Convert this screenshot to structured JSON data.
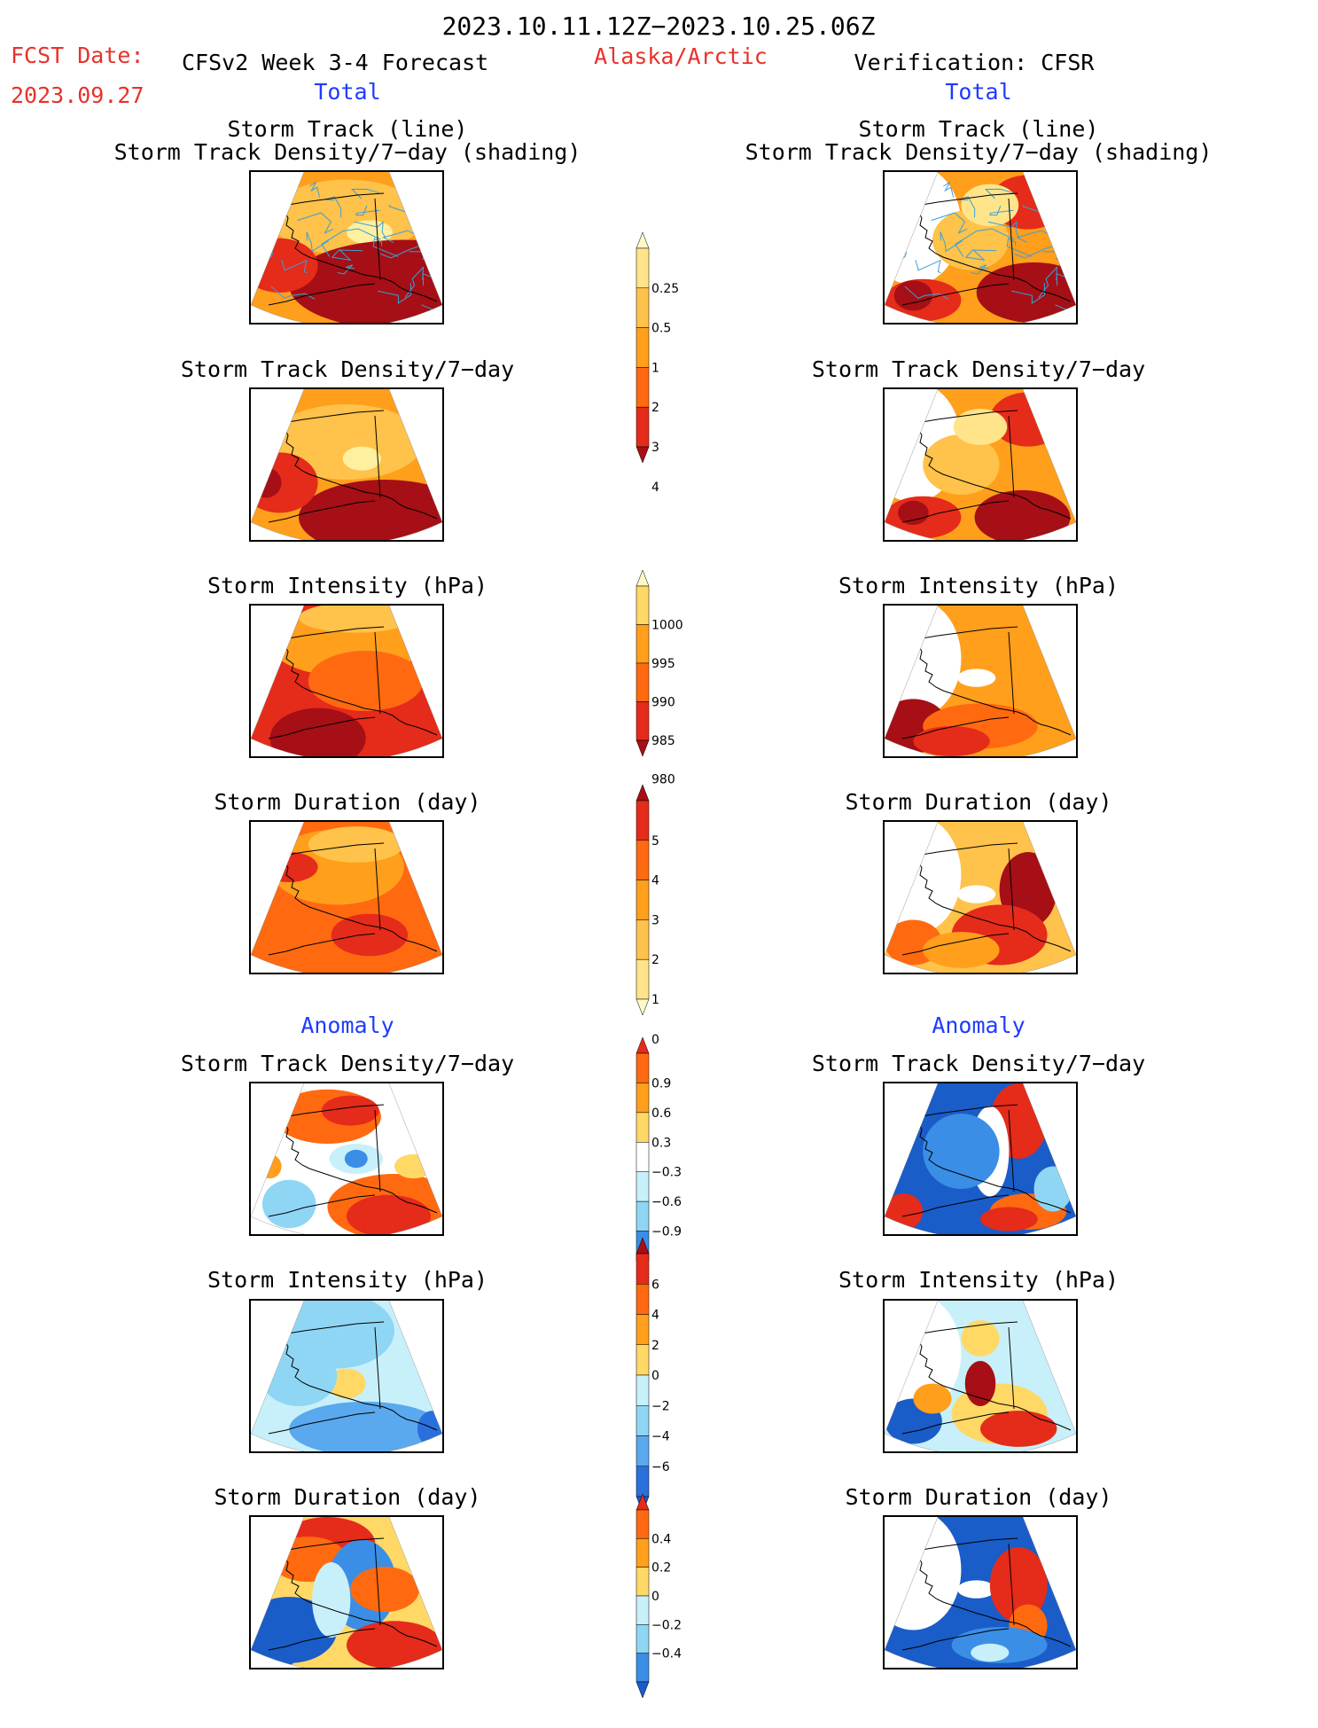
{
  "header": {
    "date_range": "2023.10.11.12Z−2023.10.25.06Z",
    "fcst_label": "FCST Date:",
    "fcst_date": "2023.09.27",
    "model": "CFSv2 Week 3-4 Forecast",
    "region": "Alaska/Arctic",
    "verification": "Verification: CFSR"
  },
  "sections": {
    "total": "Total",
    "anomaly": "Anomaly"
  },
  "panel_titles": {
    "track_line": "Storm Track (line)",
    "track_shading": "Storm Track Density/7−day (shading)",
    "density": "Storm Track Density/7−day",
    "intensity": "Storm Intensity (hPa)",
    "duration": "Storm Duration (day)"
  },
  "colors": {
    "text_red": "#e8322a",
    "text_blue": "#1f3bff",
    "track_line": "#3aa0d8",
    "map_border": "#000000"
  },
  "chart_data": [
    {
      "type": "heatmap",
      "name": "total_density_colorbar",
      "ticks": [
        "0.25",
        "0.5",
        "1",
        "2",
        "3",
        "4"
      ],
      "colors": [
        "#fff9c8",
        "#ffe48a",
        "#ffc24a",
        "#ff9f1c",
        "#ff6a10",
        "#e52b1a",
        "#a50f15"
      ]
    },
    {
      "type": "heatmap",
      "name": "total_intensity_colorbar",
      "ticks": [
        "1000",
        "995",
        "990",
        "985",
        "980"
      ],
      "colors": [
        "#fff9c8",
        "#ffd866",
        "#ff9f1c",
        "#ff6a10",
        "#e52b1a",
        "#a50f15"
      ]
    },
    {
      "type": "heatmap",
      "name": "total_duration_colorbar",
      "ticks": [
        "5",
        "4",
        "3",
        "2",
        "1",
        "0"
      ],
      "colors": [
        "#a50f15",
        "#e52b1a",
        "#ff6a10",
        "#ff9f1c",
        "#ffc24a",
        "#ffe48a",
        "#fff9c8"
      ]
    },
    {
      "type": "heatmap",
      "name": "anomaly_density_colorbar",
      "ticks": [
        "0.9",
        "0.6",
        "0.3",
        "−0.3",
        "−0.6",
        "−0.9"
      ],
      "colors": [
        "#e52b1a",
        "#ff6a10",
        "#ff9f1c",
        "#ffd866",
        "#ffffff",
        "#c8f0fa",
        "#8fd6f5",
        "#3a8ee6",
        "#1a5cc8"
      ]
    },
    {
      "type": "heatmap",
      "name": "anomaly_intensity_colorbar",
      "ticks": [
        "6",
        "4",
        "2",
        "0",
        "−2",
        "−4",
        "−6"
      ],
      "colors": [
        "#a50f15",
        "#e52b1a",
        "#ff6a10",
        "#ff9f1c",
        "#ffd866",
        "#c8f0fa",
        "#8fd6f5",
        "#5aa8ee",
        "#2a70dc",
        "#1a5cc8"
      ]
    },
    {
      "type": "heatmap",
      "name": "anomaly_duration_colorbar",
      "ticks": [
        "0.4",
        "0.2",
        "0",
        "−0.2",
        "−0.4"
      ],
      "colors": [
        "#e52b1a",
        "#ff6a10",
        "#ff9f1c",
        "#ffd866",
        "#c8f0fa",
        "#8fd6f5",
        "#3a8ee6",
        "#1a5cc8"
      ]
    }
  ]
}
